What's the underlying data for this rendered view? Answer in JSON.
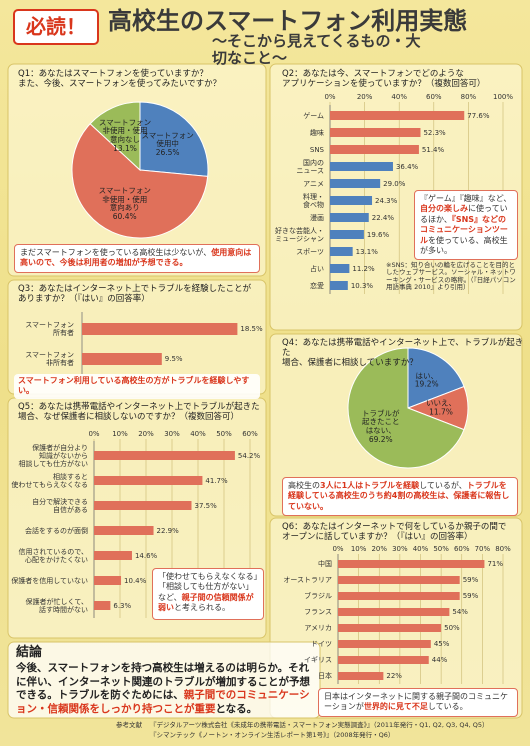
{
  "header": {
    "badge": "必読！",
    "title": "高校生のスマートフォン利用実態",
    "subtitle": "〜そこから見えてくるもの・大切なこと〜"
  },
  "chart_data": [
    {
      "type": "pie",
      "title": "Q1：あなたはスマートフォンを使っていますか？\nまた、今後、スマートフォンを使ってみたいですか？",
      "categories": [
        "スマートフォン\n使用中",
        "スマートフォン\n非使用・使用\n意向あり",
        "スマートフォン\n非使用・使用\n意向なし"
      ],
      "values": [
        26.5,
        60.4,
        13.1
      ],
      "value_labels": [
        "26.5%",
        "60.4%",
        "13.1%"
      ],
      "colors": [
        "#4f81bd",
        "#e0705a",
        "#9bbb59"
      ],
      "note": [
        "まだスマートフォンを使っている高校生は少ないが、",
        "使用意向は高いので、今後は利用者の増加が予想できる。"
      ]
    },
    {
      "type": "bar",
      "title": "Q2：あなたは今、スマートフォンでどのような\nアプリケーションを使っていますか？（複数回答可）",
      "categories": [
        "ゲーム",
        "趣味",
        "SNS",
        "国内の\nニュース",
        "アニメ",
        "料理・\n食べ物",
        "漫画",
        "好きな芸能人・\nミュージシャン",
        "スポーツ",
        "占い",
        "恋愛"
      ],
      "values": [
        77.6,
        52.3,
        51.4,
        36.4,
        29.0,
        24.3,
        22.4,
        19.6,
        13.1,
        11.2,
        10.3
      ],
      "value_labels": [
        "77.6%",
        "52.3%",
        "51.4%",
        "36.4%",
        "29.0%",
        "24.3%",
        "22.4%",
        "19.6%",
        "13.1%",
        "11.2%",
        "10.3%"
      ],
      "colors": [
        "#e0705a",
        "#e0705a",
        "#e0705a",
        "#4f81bd",
        "#4f81bd",
        "#4f81bd",
        "#4f81bd",
        "#4f81bd",
        "#4f81bd",
        "#4f81bd",
        "#4f81bd"
      ],
      "xlim": [
        0,
        100
      ],
      "xticks": [
        {
          "value": 0,
          "label": "0%"
        },
        {
          "value": 20,
          "label": "20%"
        },
        {
          "value": 40,
          "label": "40%"
        },
        {
          "value": 60,
          "label": "60%"
        },
        {
          "value": 80,
          "label": "80%"
        },
        {
          "value": 100,
          "label": "100%"
        }
      ],
      "grid": true,
      "note": [
        "『ゲーム』『趣味』など、",
        "自分の楽しみ",
        "に使っているほか、",
        "『SNS』などのコミュニケーションツール",
        "を使っている、高校生が多い。"
      ],
      "footnote": "※SNS：知り合いの輪を広げることを目的としたウェブサービス。ソーシャル・ネットワーキング・サービスの略称。（『日経パソコン用語事典 2010』より引用）"
    },
    {
      "type": "bar",
      "title": "Q3：あなたはインターネット上でトラブルを経験したことが\nありますか？（『はい』の回答率）",
      "categories": [
        "スマートフォン\n所有者",
        "スマートフォン\n非所有者"
      ],
      "values": [
        18.5,
        9.5
      ],
      "value_labels": [
        "18.5%",
        "9.5%"
      ],
      "color": "#e0705a",
      "xlim": [
        0,
        20
      ],
      "note": [
        "",
        "スマートフォン利用している高校生の方がトラブルを経験しやすい。"
      ]
    },
    {
      "type": "pie",
      "title": "Q4：あなたは携帯電話やインターネット上で、トラブルが起きた\n場合、保護者に相談していますか？",
      "categories": [
        "はい、",
        "いいえ、",
        "トラブルが\n起きたこと\nはない、"
      ],
      "values": [
        19.2,
        11.7,
        69.2
      ],
      "value_labels": [
        "19.2%",
        "11.7%",
        "69.2%"
      ],
      "colors": [
        "#4f81bd",
        "#e0705a",
        "#9bbb59"
      ],
      "note": [
        "高校生の",
        "3人に1人はトラブルを経験",
        "しているが、",
        "トラブルを経験している高校生のうち約4割の高校生は、保護者に報告していない。"
      ]
    },
    {
      "type": "bar",
      "title": "Q5：あなたは携帯電話やインターネット上でトラブルが起きた\n場合、なぜ保護者に相談しないのですか？（複数回答可）",
      "categories": [
        "保護者が自分より\n知識がないから\n相談しても仕方がない",
        "相談すると\n使わせてもらえなくなる",
        "自分で解決できる\n自信がある",
        "会話をするのが面倒",
        "信用されているので、\n心配をかけたくない",
        "保護者を信用していない",
        "保護者が忙しくて、\n話す時間がない"
      ],
      "values": [
        54.2,
        41.7,
        37.5,
        22.9,
        14.6,
        10.4,
        6.3
      ],
      "value_labels": [
        "54.2%",
        "41.7%",
        "37.5%",
        "22.9%",
        "14.6%",
        "10.4%",
        "6.3%"
      ],
      "color": "#e0705a",
      "xlim": [
        0,
        60
      ],
      "xticks": [
        {
          "value": 0,
          "label": "0%"
        },
        {
          "value": 10,
          "label": "10%"
        },
        {
          "value": 20,
          "label": "20%"
        },
        {
          "value": 30,
          "label": "30%"
        },
        {
          "value": 40,
          "label": "40%"
        },
        {
          "value": 50,
          "label": "50%"
        },
        {
          "value": 60,
          "label": "60%"
        }
      ],
      "grid": true,
      "note": [
        "「使わせてもらえなくなる」「相談しても仕方がない」など、",
        "親子間の信頼関係が弱い",
        "と考えられる。"
      ]
    },
    {
      "type": "bar",
      "title": "Q6：あなたはインターネットで何をしているか親子の間で\nオープンに話していますか？（『はい』の回答率）",
      "categories": [
        "中国",
        "オーストラリア",
        "ブラジル",
        "フランス",
        "アメリカ",
        "ドイツ",
        "イギリス",
        "日本"
      ],
      "values": [
        71,
        59,
        59,
        54,
        50,
        45,
        44,
        22
      ],
      "value_labels": [
        "71%",
        "59%",
        "59%",
        "54%",
        "50%",
        "45%",
        "44%",
        "22%"
      ],
      "color": "#e0705a",
      "xlim": [
        0,
        80
      ],
      "xticks": [
        {
          "value": 0,
          "label": "0%"
        },
        {
          "value": 10,
          "label": "10%"
        },
        {
          "value": 20,
          "label": "20%"
        },
        {
          "value": 30,
          "label": "30%"
        },
        {
          "value": 40,
          "label": "40%"
        },
        {
          "value": 50,
          "label": "50%"
        },
        {
          "value": 60,
          "label": "60%"
        },
        {
          "value": 70,
          "label": "70%"
        },
        {
          "value": 80,
          "label": "80%"
        }
      ],
      "grid": true,
      "note": [
        "日本はインターネットに関する親子間のコミュニケーションが",
        "世界的に見て不足",
        "している。"
      ]
    }
  ],
  "conclusion": {
    "heading": "結論",
    "parts": [
      "今後、スマートフォンを持つ高校生は増えるのは明らか。それに伴い、インターネット関連のトラブルが増加することが予想できる。トラブルを防ぐためには、",
      "親子間でのコミュニケーション・信頼関係をしっかり持つことが重要",
      "となる。"
    ]
  },
  "references": {
    "heading": "参考文献",
    "items": [
      "『デジタルアーツ株式会社《未成年の携帯電話・スマートフォン実態調査》』（2011年発行・Q1, Q2, Q3, Q4, Q5）",
      "『シマンテック《ノートン・オンライン生活レポート第1号》』（2008年発行・Q6）"
    ]
  }
}
